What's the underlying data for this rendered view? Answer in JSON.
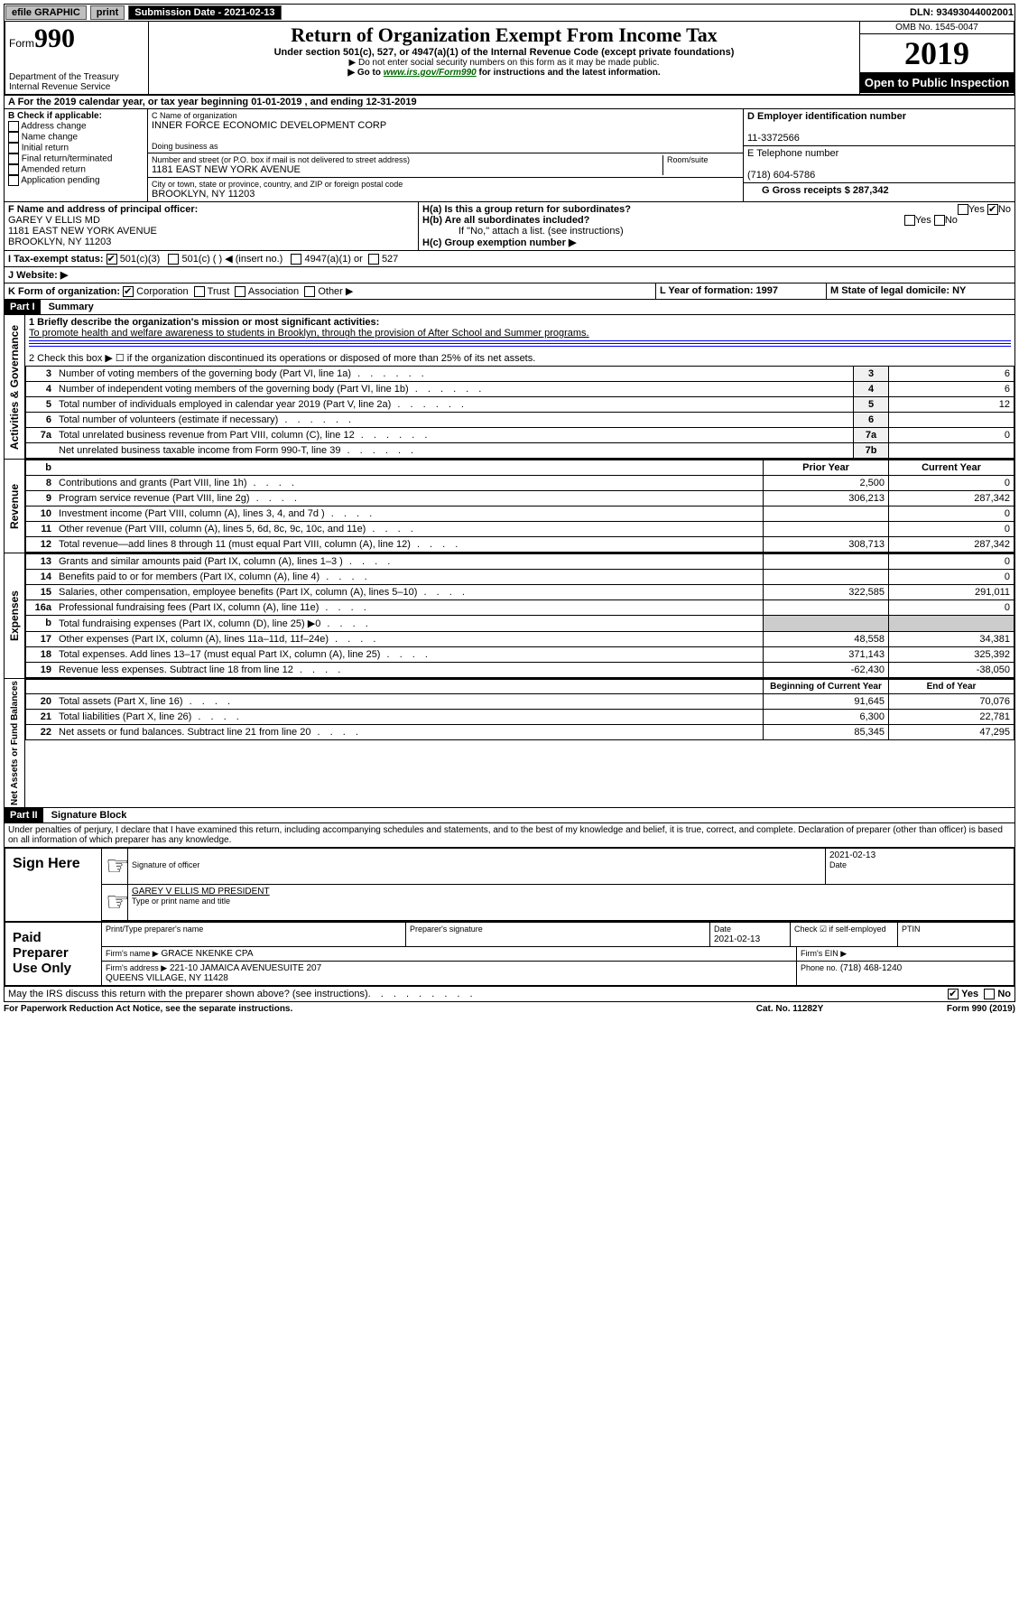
{
  "topbar": {
    "efile": "efile GRAPHIC",
    "print": "print",
    "submission_label": "Submission Date - 2021-02-13",
    "dln": "DLN: 93493044002001"
  },
  "header": {
    "form": "990",
    "form_word": "Form",
    "dept": "Department of the Treasury\nInternal Revenue Service",
    "title": "Return of Organization Exempt From Income Tax",
    "subtitle": "Under section 501(c), 527, or 4947(a)(1) of the Internal Revenue Code (except private foundations)",
    "note1": "▶ Do not enter social security numbers on this form as it may be made public.",
    "note2_pre": "▶ Go to ",
    "note2_link": "www.irs.gov/Form990",
    "note2_post": " for instructions and the latest information.",
    "omb": "OMB No. 1545-0047",
    "year": "2019",
    "open": "Open to Public Inspection"
  },
  "rowA": "A For the 2019 calendar year, or tax year beginning 01-01-2019   , and ending 12-31-2019",
  "boxB": {
    "label": "B Check if applicable:",
    "opts": [
      "Address change",
      "Name change",
      "Initial return",
      "Final return/terminated",
      "Amended return",
      "Application pending"
    ]
  },
  "boxC": {
    "name_label": "C Name of organization",
    "org": "INNER FORCE ECONOMIC DEVELOPMENT CORP",
    "dba_label": "Doing business as",
    "dba": "",
    "addr_label": "Number and street (or P.O. box if mail is not delivered to street address)",
    "room_label": "Room/suite",
    "addr": "1181 EAST NEW YORK AVENUE",
    "city_label": "City or town, state or province, country, and ZIP or foreign postal code",
    "city": "BROOKLYN, NY  11203"
  },
  "boxD": {
    "label": "D Employer identification number",
    "ein": "11-3372566"
  },
  "boxE": {
    "label": "E Telephone number",
    "phone": "(718) 604-5786"
  },
  "boxG": {
    "text": "G Gross receipts $ 287,342"
  },
  "boxF": {
    "label": "F Name and address of principal officer:",
    "name": "GAREY V ELLIS MD",
    "addr": "1181 EAST NEW YORK AVENUE\nBROOKLYN, NY  11203"
  },
  "boxH": {
    "ha": "H(a)  Is this a group return for subordinates?",
    "hb": "H(b)  Are all subordinates included?",
    "hb_note": "If \"No,\" attach a list. (see instructions)",
    "hc": "H(c)  Group exemption number ▶"
  },
  "boxI": {
    "label": "I   Tax-exempt status:",
    "opts": [
      "501(c)(3)",
      "501(c) (  ) ◀ (insert no.)",
      "4947(a)(1) or",
      "527"
    ]
  },
  "boxJ": {
    "label": "J   Website: ▶"
  },
  "boxK": {
    "label": "K Form of organization:",
    "opts": [
      "Corporation",
      "Trust",
      "Association",
      "Other ▶"
    ]
  },
  "boxL": {
    "text": "L Year of formation: 1997"
  },
  "boxM": {
    "text": "M State of legal domicile: NY"
  },
  "partI": {
    "header": "Part I",
    "title": "Summary"
  },
  "governance": {
    "label": "Activities & Governance",
    "line1_label": "1   Briefly describe the organization's mission or most significant activities:",
    "line1_text": "To promote health and welfare awareness to students in Brooklyn, through the provision of After School and Summer programs.",
    "line2": "2   Check this box ▶ ☐  if the organization discontinued its operations or disposed of more than 25% of its net assets.",
    "rows": [
      {
        "n": "3",
        "d": "Number of voting members of the governing body (Part VI, line 1a)",
        "b": "3",
        "v": "6"
      },
      {
        "n": "4",
        "d": "Number of independent voting members of the governing body (Part VI, line 1b)",
        "b": "4",
        "v": "6"
      },
      {
        "n": "5",
        "d": "Total number of individuals employed in calendar year 2019 (Part V, line 2a)",
        "b": "5",
        "v": "12"
      },
      {
        "n": "6",
        "d": "Total number of volunteers (estimate if necessary)",
        "b": "6",
        "v": ""
      },
      {
        "n": "7a",
        "d": "Total unrelated business revenue from Part VIII, column (C), line 12",
        "b": "7a",
        "v": "0"
      },
      {
        "n": "",
        "d": "Net unrelated business taxable income from Form 990-T, line 39",
        "b": "7b",
        "v": ""
      }
    ]
  },
  "revenue": {
    "label": "Revenue",
    "head_b": "b",
    "head_prior": "Prior Year",
    "head_curr": "Current Year",
    "rows": [
      {
        "n": "8",
        "d": "Contributions and grants (Part VIII, line 1h)",
        "p": "2,500",
        "c": "0"
      },
      {
        "n": "9",
        "d": "Program service revenue (Part VIII, line 2g)",
        "p": "306,213",
        "c": "287,342"
      },
      {
        "n": "10",
        "d": "Investment income (Part VIII, column (A), lines 3, 4, and 7d )",
        "p": "",
        "c": "0"
      },
      {
        "n": "11",
        "d": "Other revenue (Part VIII, column (A), lines 5, 6d, 8c, 9c, 10c, and 11e)",
        "p": "",
        "c": "0"
      },
      {
        "n": "12",
        "d": "Total revenue—add lines 8 through 11 (must equal Part VIII, column (A), line 12)",
        "p": "308,713",
        "c": "287,342"
      }
    ]
  },
  "expenses": {
    "label": "Expenses",
    "rows": [
      {
        "n": "13",
        "d": "Grants and similar amounts paid (Part IX, column (A), lines 1–3 )",
        "p": "",
        "c": "0"
      },
      {
        "n": "14",
        "d": "Benefits paid to or for members (Part IX, column (A), line 4)",
        "p": "",
        "c": "0"
      },
      {
        "n": "15",
        "d": "Salaries, other compensation, employee benefits (Part IX, column (A), lines 5–10)",
        "p": "322,585",
        "c": "291,011"
      },
      {
        "n": "16a",
        "d": "Professional fundraising fees (Part IX, column (A), line 11e)",
        "p": "",
        "c": "0"
      },
      {
        "n": "b",
        "d": "Total fundraising expenses (Part IX, column (D), line 25) ▶0",
        "p": "GREY",
        "c": "GREY"
      },
      {
        "n": "17",
        "d": "Other expenses (Part IX, column (A), lines 11a–11d, 11f–24e)",
        "p": "48,558",
        "c": "34,381"
      },
      {
        "n": "18",
        "d": "Total expenses. Add lines 13–17 (must equal Part IX, column (A), line 25)",
        "p": "371,143",
        "c": "325,392"
      },
      {
        "n": "19",
        "d": "Revenue less expenses. Subtract line 18 from line 12",
        "p": "-62,430",
        "c": "-38,050"
      }
    ]
  },
  "netassets": {
    "label": "Net Assets or Fund Balances",
    "head_prior": "Beginning of Current Year",
    "head_curr": "End of Year",
    "rows": [
      {
        "n": "20",
        "d": "Total assets (Part X, line 16)",
        "p": "91,645",
        "c": "70,076"
      },
      {
        "n": "21",
        "d": "Total liabilities (Part X, line 26)",
        "p": "6,300",
        "c": "22,781"
      },
      {
        "n": "22",
        "d": "Net assets or fund balances. Subtract line 21 from line 20",
        "p": "85,345",
        "c": "47,295"
      }
    ]
  },
  "partII": {
    "header": "Part II",
    "title": "Signature Block",
    "perjury": "Under penalties of perjury, I declare that I have examined this return, including accompanying schedules and statements, and to the best of my knowledge and belief, it is true, correct, and complete. Declaration of preparer (other than officer) is based on all information of which preparer has any knowledge."
  },
  "sign": {
    "label": "Sign Here",
    "date": "2021-02-13",
    "sig_label": "Signature of officer",
    "date_label": "Date",
    "name": "GAREY V ELLIS MD  PRESIDENT",
    "name_label": "Type or print name and title"
  },
  "paid": {
    "label": "Paid Preparer Use Only",
    "h1": "Print/Type preparer's name",
    "h2": "Preparer's signature",
    "h3": "Date",
    "h3v": "2021-02-13",
    "h4": "Check ☑ if self-employed",
    "h5": "PTIN",
    "firm_label": "Firm's name    ▶",
    "firm": "GRACE NKENKE CPA",
    "ein_label": "Firm's EIN ▶",
    "addr_label": "Firm's address ▶",
    "addr": "221-10 JAMAICA AVENUESUITE 207\nQUEENS VILLAGE, NY  11428",
    "phone_label": "Phone no.",
    "phone": "(718) 468-1240"
  },
  "discuss": "May the IRS discuss this return with the preparer shown above? (see instructions)",
  "footer": {
    "left": "For Paperwork Reduction Act Notice, see the separate instructions.",
    "mid": "Cat. No. 11282Y",
    "right": "Form 990 (2019)"
  },
  "yesno": {
    "yes": "Yes",
    "no": "No"
  }
}
